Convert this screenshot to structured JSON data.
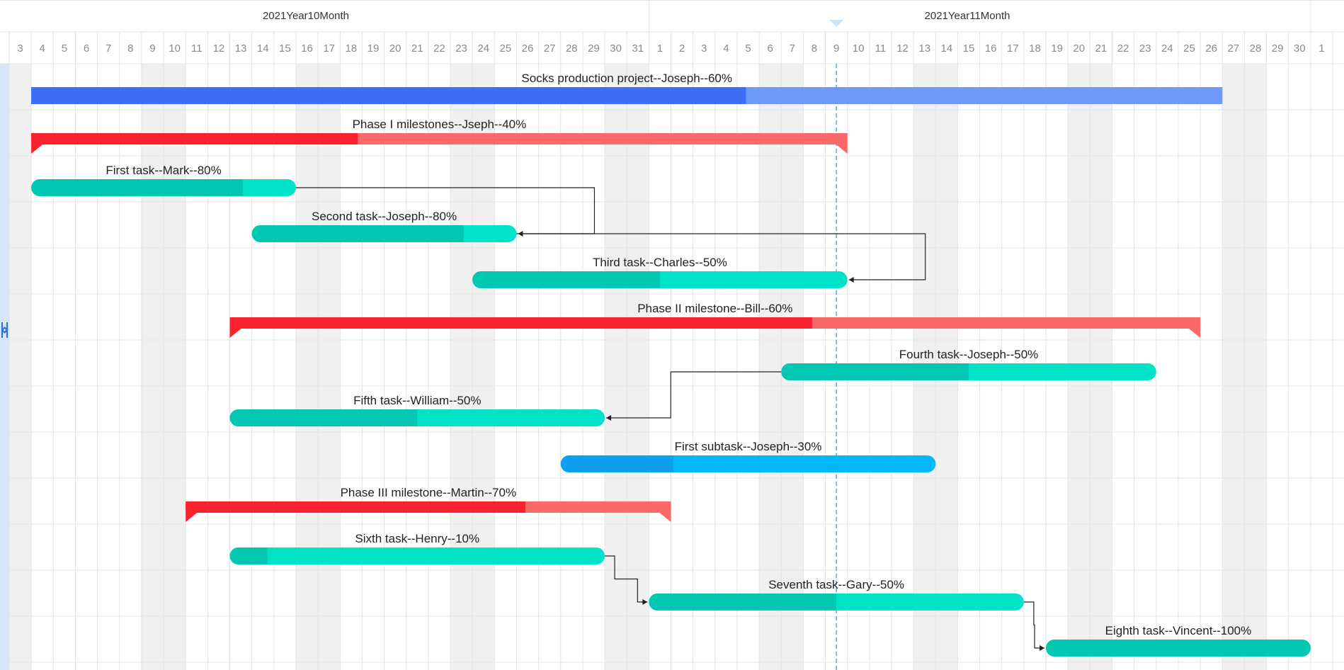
{
  "chart_data": {
    "type": "gantt",
    "months": [
      "2021Year10Month",
      "2021Year11Month"
    ],
    "days": [
      "3",
      "4",
      "5",
      "6",
      "7",
      "8",
      "9",
      "10",
      "11",
      "12",
      "13",
      "14",
      "15",
      "16",
      "17",
      "18",
      "19",
      "20",
      "21",
      "22",
      "23",
      "24",
      "25",
      "26",
      "27",
      "28",
      "29",
      "30",
      "31",
      "1",
      "2",
      "3",
      "4",
      "5",
      "6",
      "7",
      "8",
      "9",
      "10",
      "11",
      "12",
      "13",
      "14",
      "15",
      "16",
      "17",
      "18",
      "19",
      "20",
      "21",
      "22",
      "23",
      "24",
      "25",
      "26",
      "27",
      "28",
      "29",
      "30",
      "1"
    ],
    "weekend_day_indices": [
      0,
      6,
      7,
      13,
      14,
      20,
      21,
      27,
      28,
      34,
      35,
      41,
      42,
      48,
      49,
      55,
      56
    ],
    "today": "2021-11-09",
    "tasks": [
      {
        "label": "Socks production project--Joseph--60%",
        "start": "2021-10-04",
        "end": "2021-11-26",
        "progress": 0.6,
        "kind": "project",
        "color": "#3d6ef5",
        "color_light": "#6f99fb"
      },
      {
        "label": "Phase I milestones--Jseph--40%",
        "start": "2021-10-04",
        "end": "2021-11-09",
        "progress": 0.4,
        "kind": "milestone",
        "color": "#fb2230",
        "color_light": "#fb6868"
      },
      {
        "label": "First task--Mark--80%",
        "start": "2021-10-04",
        "end": "2021-10-15",
        "progress": 0.8,
        "kind": "task",
        "color": "#00c8b2",
        "color_light": "#00e3c8"
      },
      {
        "label": "Second task--Joseph--80%",
        "start": "2021-10-14",
        "end": "2021-10-25",
        "progress": 0.8,
        "kind": "task",
        "color": "#00c8b2",
        "color_light": "#00e3c8"
      },
      {
        "label": "Third task--Charles--50%",
        "start": "2021-10-24",
        "end": "2021-11-09",
        "progress": 0.5,
        "kind": "task",
        "color": "#00c8b2",
        "color_light": "#00e3c8"
      },
      {
        "label": "Phase II milestone--Bill--60%",
        "start": "2021-10-13",
        "end": "2021-11-25",
        "progress": 0.6,
        "kind": "milestone",
        "color": "#fb2230",
        "color_light": "#fb6868"
      },
      {
        "label": "Fourth task--Joseph--50%",
        "start": "2021-11-07",
        "end": "2021-11-23",
        "progress": 0.5,
        "kind": "task",
        "color": "#00c8b2",
        "color_light": "#00e3c8"
      },
      {
        "label": "Fifth task--William--50%",
        "start": "2021-10-13",
        "end": "2021-10-29",
        "progress": 0.5,
        "kind": "task",
        "color": "#00c8b2",
        "color_light": "#00e3c8"
      },
      {
        "label": "First subtask--Joseph--30%",
        "start": "2021-10-28",
        "end": "2021-11-13",
        "progress": 0.3,
        "kind": "task",
        "color": "#0ca0ee",
        "color_light": "#00b8f8"
      },
      {
        "label": "Phase III milestone--Martin--70%",
        "start": "2021-10-11",
        "end": "2021-11-01",
        "progress": 0.7,
        "kind": "milestone",
        "color": "#fb2230",
        "color_light": "#fb6868"
      },
      {
        "label": "Sixth task--Henry--10%",
        "start": "2021-10-13",
        "end": "2021-10-29",
        "progress": 0.1,
        "kind": "task",
        "color": "#00c8b2",
        "color_light": "#00e3c8"
      },
      {
        "label": "Seventh task--Gary--50%",
        "start": "2021-11-01",
        "end": "2021-11-17",
        "progress": 0.5,
        "kind": "task",
        "color": "#00c8b2",
        "color_light": "#00e3c8"
      },
      {
        "label": "Eighth task--Vincent--100%",
        "start": "2021-11-19",
        "end": "2021-11-30",
        "progress": 1.0,
        "kind": "task",
        "color": "#00c8b2",
        "color_light": "#00e3c8"
      }
    ],
    "dependencies": [
      [
        2,
        3
      ],
      [
        3,
        4
      ],
      [
        6,
        7
      ],
      [
        10,
        11
      ],
      [
        11,
        12
      ]
    ],
    "colors": {
      "grid": "#e3e3e3",
      "weekend": "#f0f0f0",
      "today_line": "#5aa3e8",
      "scroll_strip": "#d6e6f8"
    }
  }
}
